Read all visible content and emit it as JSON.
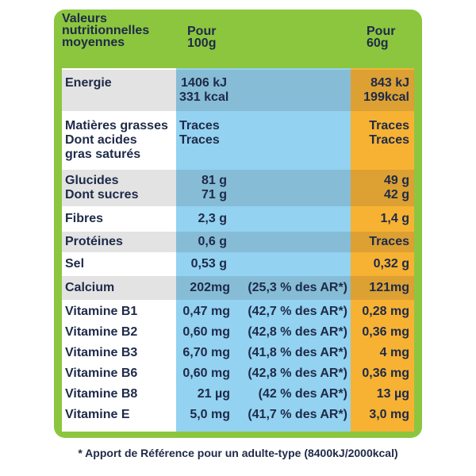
{
  "header": {
    "label": [
      "Valeurs",
      "nutritionnelles",
      "moyennes"
    ],
    "col1": [
      "Pour",
      "100g"
    ],
    "col2": [
      "Pour",
      "60g"
    ]
  },
  "rows": [
    {
      "label": [
        "Energie"
      ],
      "per100": [
        "1406 kJ",
        "331 kcal"
      ],
      "per60": [
        "843 kJ",
        "199kcal"
      ]
    },
    {
      "label": [
        "Matières grasses",
        "Dont acides",
        "gras saturés"
      ],
      "per100": [
        "Traces",
        "Traces"
      ],
      "per60": [
        "Traces",
        "Traces"
      ]
    },
    {
      "label": [
        "Glucides",
        "Dont sucres"
      ],
      "per100": [
        "81 g",
        "71 g"
      ],
      "per60": [
        "49 g",
        "42 g"
      ]
    },
    {
      "label": [
        "Fibres"
      ],
      "per100": [
        "2,3 g"
      ],
      "per60": [
        "1,4 g"
      ]
    },
    {
      "label": [
        "Protéines"
      ],
      "per100": [
        "0,6 g"
      ],
      "per60": [
        "Traces"
      ]
    },
    {
      "label": [
        "Sel"
      ],
      "per100": [
        "0,53 g"
      ],
      "per60": [
        "0,32 g"
      ]
    },
    {
      "label": [
        "Calcium"
      ],
      "per100": [
        "202mg"
      ],
      "ar": "(25,3 % des AR*)",
      "per60": [
        "121mg"
      ]
    },
    {
      "label": [
        "Vitamine B1"
      ],
      "per100": [
        "0,47 mg"
      ],
      "ar": "(42,7 % des AR*)",
      "per60": [
        "0,28 mg"
      ]
    },
    {
      "label": [
        "Vitamine B2"
      ],
      "per100": [
        "0,60 mg"
      ],
      "ar": "(42,8 % des AR*)",
      "per60": [
        "0,36 mg"
      ]
    },
    {
      "label": [
        "Vitamine B3"
      ],
      "per100": [
        "6,70 mg"
      ],
      "ar": "(41,8 % des AR*)",
      "per60": [
        "4 mg"
      ]
    },
    {
      "label": [
        "Vitamine B6"
      ],
      "per100": [
        "0,60 mg"
      ],
      "ar": "(42,8 % des AR*)",
      "per60": [
        "0,36 mg"
      ]
    },
    {
      "label": [
        "Vitamine B8"
      ],
      "per100": [
        "21 µg"
      ],
      "ar": "(42 % des AR*)",
      "per60": [
        "13 µg"
      ]
    },
    {
      "label": [
        "Vitamine E"
      ],
      "per100": [
        "5,0 mg"
      ],
      "ar": "(41,7 % des AR*)",
      "per60": [
        "3,0 mg"
      ]
    }
  ],
  "footnote": "* Apport de Référence pour un adulte-type (8400kJ/2000kcal)"
}
